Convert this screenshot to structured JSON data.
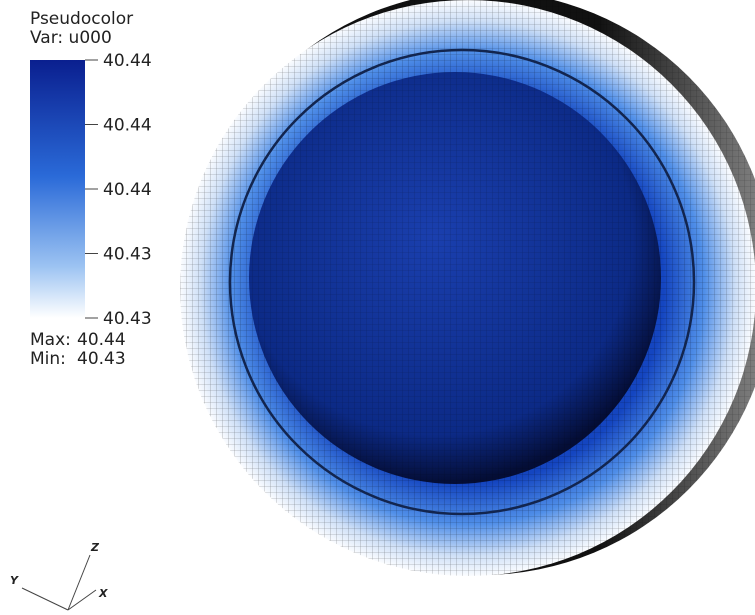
{
  "legend": {
    "title": "Pseudocolor",
    "variable": "Var: u000",
    "ticks": [
      "40.44",
      "40.44",
      "40.44",
      "40.43",
      "40.43"
    ],
    "max": {
      "label": "Max:",
      "value": "40.44"
    },
    "min": {
      "label": "Min:",
      "value": "40.43"
    }
  },
  "axes": {
    "z": "Z",
    "y": "Y",
    "x": "X"
  }
}
